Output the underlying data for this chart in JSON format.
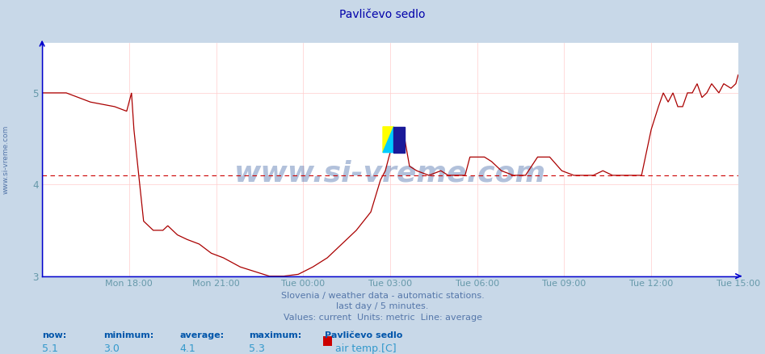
{
  "title": "Pavličevo sedlo",
  "background_color": "#c8d8e8",
  "plot_bg_color": "#ffffff",
  "line_color": "#aa0000",
  "avg_line_color": "#cc0000",
  "avg_value": 4.1,
  "y_min": 3.0,
  "y_max": 5.55,
  "y_ticks": [
    3,
    4,
    5
  ],
  "x_tick_labels": [
    "Mon 18:00",
    "Mon 21:00",
    "Tue 00:00",
    "Tue 03:00",
    "Tue 06:00",
    "Tue 09:00",
    "Tue 12:00",
    "Tue 15:00"
  ],
  "footnote1": "Slovenia / weather data - automatic stations.",
  "footnote2": "last day / 5 minutes.",
  "footnote3": "Values: current  Units: metric  Line: average",
  "legend_title": "Pavličevo sedlo",
  "legend_label": "air temp.[C]",
  "stat_now": "5.1",
  "stat_min": "3.0",
  "stat_avg": "4.1",
  "stat_max": "5.3",
  "watermark": "www.si-vreme.com",
  "left_label": "www.si-vreme.com",
  "grid_color": "#ffcccc",
  "spine_color": "#0000cc",
  "tick_color": "#6699aa",
  "text_color": "#5577aa",
  "title_color": "#0000aa",
  "stat_label_color": "#0055aa",
  "stat_value_color": "#3399cc"
}
